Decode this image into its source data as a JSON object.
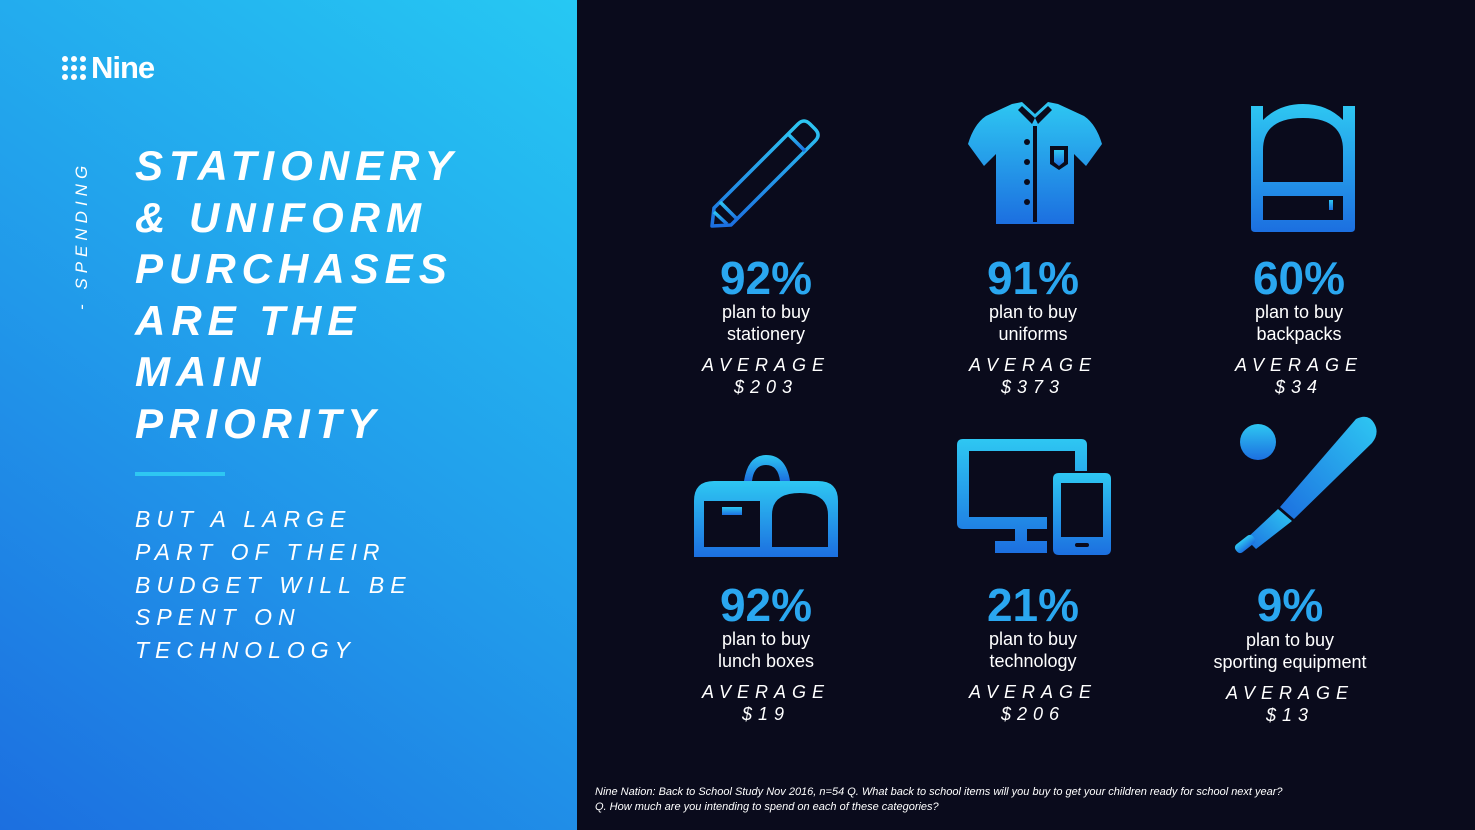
{
  "brand": {
    "logo_text": "Nine"
  },
  "section_label": "- SPENDING",
  "headline": {
    "lines": [
      "STATIONERY",
      "& UNIFORM",
      "PURCHASES",
      "ARE THE",
      "MAIN",
      "PRIORITY"
    ]
  },
  "subhead": {
    "lines": [
      "BUT A LARGE",
      "PART OF THEIR",
      "BUDGET WILL BE",
      "SPENT ON",
      "TECHNOLOGY"
    ]
  },
  "stats": [
    {
      "icon": "pencil-icon",
      "percent": "92%",
      "desc_line1": "plan to buy",
      "desc_line2": "stationery",
      "avg_label": "AVERAGE",
      "avg_value": "$203"
    },
    {
      "icon": "shirt-icon",
      "percent": "91%",
      "desc_line1": "plan to buy",
      "desc_line2": "uniforms",
      "avg_label": "AVERAGE",
      "avg_value": "$373"
    },
    {
      "icon": "backpack-icon",
      "percent": "60%",
      "desc_line1": "plan to buy",
      "desc_line2": "backpacks",
      "avg_label": "AVERAGE",
      "avg_value": "$34"
    },
    {
      "icon": "lunchbox-icon",
      "percent": "92%",
      "desc_line1": "plan to buy",
      "desc_line2": "lunch boxes",
      "avg_label": "AVERAGE",
      "avg_value": "$19"
    },
    {
      "icon": "devices-icon",
      "percent": "21%",
      "desc_line1": "plan to buy",
      "desc_line2": "technology",
      "avg_label": "AVERAGE",
      "avg_value": "$206"
    },
    {
      "icon": "baseball-bat-icon",
      "percent": "9%",
      "desc_line1": "plan to buy",
      "desc_line2": "sporting equipment",
      "avg_label": "AVERAGE",
      "avg_value": "$13"
    }
  ],
  "footnote": {
    "line1": "Nine Nation: Back to School Study Nov 2016, n=54  Q. What back to school items will you buy to get your children ready for school next year?",
    "line2": "Q. How much are you intending to spend on each of these categories?"
  },
  "colors": {
    "accent": "#2aa7f0",
    "icon_light": "#2ec7f2",
    "icon_dark": "#1c6fe0",
    "background": "#0a0b1c"
  }
}
